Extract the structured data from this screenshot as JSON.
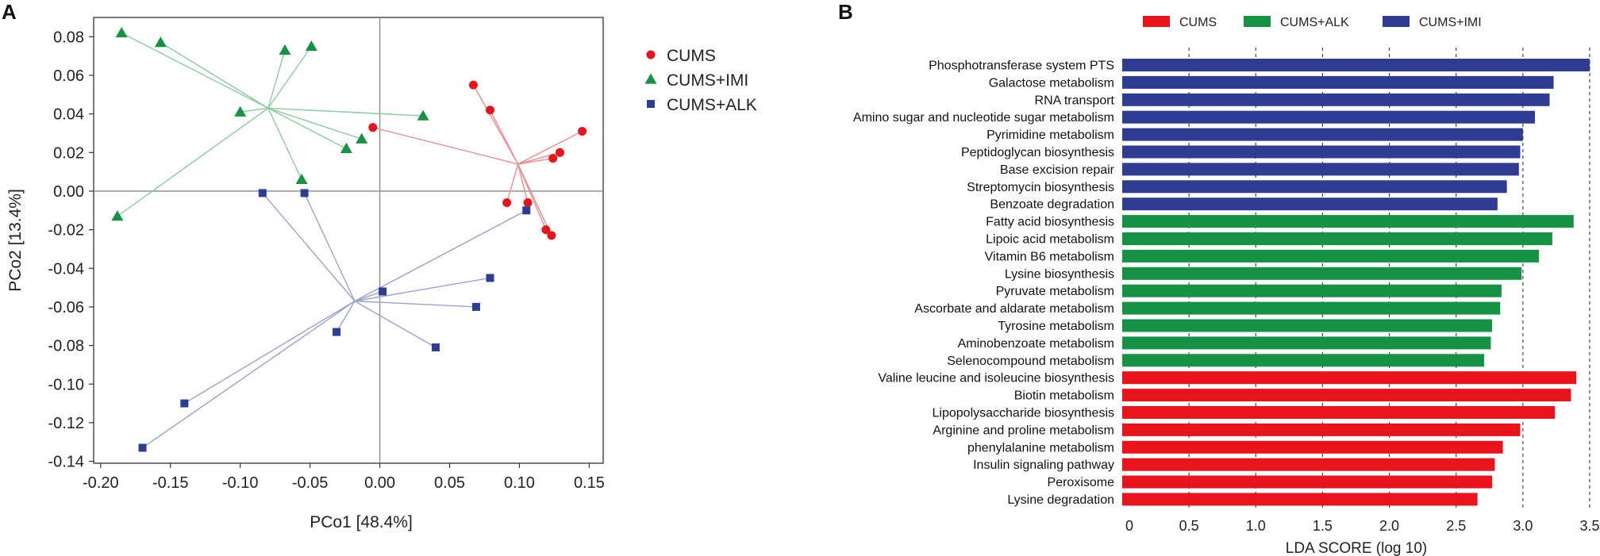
{
  "chart_data": [
    {
      "panel": "A",
      "type": "scatter",
      "xlabel": "PCo1 [48.4%]",
      "ylabel": "PCo2 [13.4%]",
      "xlim": [
        -0.205,
        0.16
      ],
      "ylim": [
        -0.141,
        0.09
      ],
      "xticks": [
        -0.2,
        -0.15,
        -0.1,
        -0.05,
        0.0,
        0.05,
        0.1,
        0.15
      ],
      "xtick_labels": [
        "-0.20",
        "-0.15",
        "-0.10",
        "-0.05",
        "0.00",
        "0.05",
        "0.10",
        "0.15"
      ],
      "yticks": [
        0.08,
        0.06,
        0.04,
        0.02,
        0.0,
        -0.02,
        -0.04,
        -0.06,
        -0.08,
        -0.1,
        -0.12,
        -0.14
      ],
      "ytick_labels": [
        "0.08",
        "0.06",
        "0.04",
        "0.02",
        "0.00",
        "-0.02",
        "-0.04",
        "-0.06",
        "-0.08",
        "-0.10",
        "-0.12",
        "-0.14"
      ],
      "legend_position": "right",
      "series": [
        {
          "name": "CUMS",
          "marker": "circle",
          "color": "#e8141c",
          "line_color": "#f08c8c",
          "centroid": [
            0.099,
            0.014
          ],
          "points": [
            [
              -0.005,
              0.033
            ],
            [
              0.067,
              0.055
            ],
            [
              0.079,
              0.042
            ],
            [
              0.145,
              0.031
            ],
            [
              0.129,
              0.02
            ],
            [
              0.124,
              0.017
            ],
            [
              0.091,
              -0.006
            ],
            [
              0.106,
              -0.006
            ],
            [
              0.119,
              -0.02
            ],
            [
              0.123,
              -0.023
            ]
          ]
        },
        {
          "name": "CUMS+IMI",
          "marker": "triangle",
          "color": "#169244",
          "line_color": "#8ccca0",
          "centroid": [
            -0.08,
            0.043
          ],
          "points": [
            [
              -0.185,
              0.082
            ],
            [
              -0.157,
              0.077
            ],
            [
              -0.068,
              0.073
            ],
            [
              -0.049,
              0.075
            ],
            [
              -0.1,
              0.041
            ],
            [
              0.031,
              0.039
            ],
            [
              -0.013,
              0.027
            ],
            [
              -0.024,
              0.022
            ],
            [
              -0.056,
              0.006
            ],
            [
              -0.188,
              -0.013
            ]
          ]
        },
        {
          "name": "CUMS+ALK",
          "marker": "square",
          "color": "#2e3d92",
          "line_color": "#9aa2d0",
          "centroid": [
            -0.018,
            -0.057
          ],
          "points": [
            [
              -0.084,
              -0.001
            ],
            [
              -0.054,
              -0.001
            ],
            [
              0.105,
              -0.01
            ],
            [
              0.079,
              -0.045
            ],
            [
              0.002,
              -0.052
            ],
            [
              0.069,
              -0.06
            ],
            [
              -0.031,
              -0.073
            ],
            [
              0.04,
              -0.081
            ],
            [
              -0.14,
              -0.11
            ],
            [
              -0.17,
              -0.133
            ]
          ]
        }
      ],
      "legend_order": [
        "CUMS",
        "CUMS+IMI",
        "CUMS+ALK"
      ]
    },
    {
      "panel": "B",
      "type": "bar",
      "orientation": "horizontal",
      "xlabel": "LDA SCORE (log 10)",
      "xlim": [
        0,
        3.5
      ],
      "xticks": [
        0,
        0.5,
        1.0,
        1.5,
        2.0,
        2.5,
        3.0,
        3.5
      ],
      "xtick_labels": [
        "0",
        "0.5",
        "1.0",
        "1.5",
        "2.0",
        "2.5",
        "3.0",
        "3.5"
      ],
      "grid": "vertical dashed",
      "legend_position": "top",
      "legend": [
        {
          "name": "CUMS",
          "color": "#e8141c"
        },
        {
          "name": "CUMS+ALK",
          "color": "#169244"
        },
        {
          "name": "CUMS+IMI",
          "color": "#2e3d92"
        }
      ],
      "bars": [
        {
          "label": "Phosphotransferase system PTS",
          "value": 3.5,
          "group": "CUMS+IMI"
        },
        {
          "label": "Galactose metabolism",
          "value": 3.23,
          "group": "CUMS+IMI"
        },
        {
          "label": "RNA transport",
          "value": 3.2,
          "group": "CUMS+IMI"
        },
        {
          "label": "Amino sugar and nucleotide sugar metabolism",
          "value": 3.09,
          "group": "CUMS+IMI"
        },
        {
          "label": "Pyrimidine metabolism",
          "value": 3.0,
          "group": "CUMS+IMI"
        },
        {
          "label": "Peptidoglycan biosynthesis",
          "value": 2.98,
          "group": "CUMS+IMI"
        },
        {
          "label": "Base excision repair",
          "value": 2.97,
          "group": "CUMS+IMI"
        },
        {
          "label": "Streptomycin biosynthesis",
          "value": 2.88,
          "group": "CUMS+IMI"
        },
        {
          "label": "Benzoate degradation",
          "value": 2.81,
          "group": "CUMS+IMI"
        },
        {
          "label": "Fatty acid biosynthesis",
          "value": 3.38,
          "group": "CUMS+ALK"
        },
        {
          "label": "Lipoic acid metabolism",
          "value": 3.22,
          "group": "CUMS+ALK"
        },
        {
          "label": "Vitamin B6 metabolism",
          "value": 3.12,
          "group": "CUMS+ALK"
        },
        {
          "label": "Lysine biosynthesis",
          "value": 2.99,
          "group": "CUMS+ALK"
        },
        {
          "label": "Pyruvate metabolism",
          "value": 2.84,
          "group": "CUMS+ALK"
        },
        {
          "label": "Ascorbate and aldarate metabolism",
          "value": 2.83,
          "group": "CUMS+ALK"
        },
        {
          "label": "Tyrosine metabolism",
          "value": 2.77,
          "group": "CUMS+ALK"
        },
        {
          "label": "Aminobenzoate metabolism",
          "value": 2.76,
          "group": "CUMS+ALK"
        },
        {
          "label": "Selenocompound metabolism",
          "value": 2.71,
          "group": "CUMS+ALK"
        },
        {
          "label": "Valine leucine and isoleucine biosynthesis",
          "value": 3.4,
          "group": "CUMS"
        },
        {
          "label": "Biotin metabolism",
          "value": 3.36,
          "group": "CUMS"
        },
        {
          "label": "Lipopolysaccharide biosynthesis",
          "value": 3.24,
          "group": "CUMS"
        },
        {
          "label": "Arginine and proline metabolism",
          "value": 2.98,
          "group": "CUMS"
        },
        {
          "label": "phenylalanine metabolism",
          "value": 2.85,
          "group": "CUMS"
        },
        {
          "label": "Insulin signaling pathway",
          "value": 2.79,
          "group": "CUMS"
        },
        {
          "label": "Peroxisome",
          "value": 2.77,
          "group": "CUMS"
        },
        {
          "label": "Lysine degradation",
          "value": 2.66,
          "group": "CUMS"
        }
      ]
    }
  ]
}
